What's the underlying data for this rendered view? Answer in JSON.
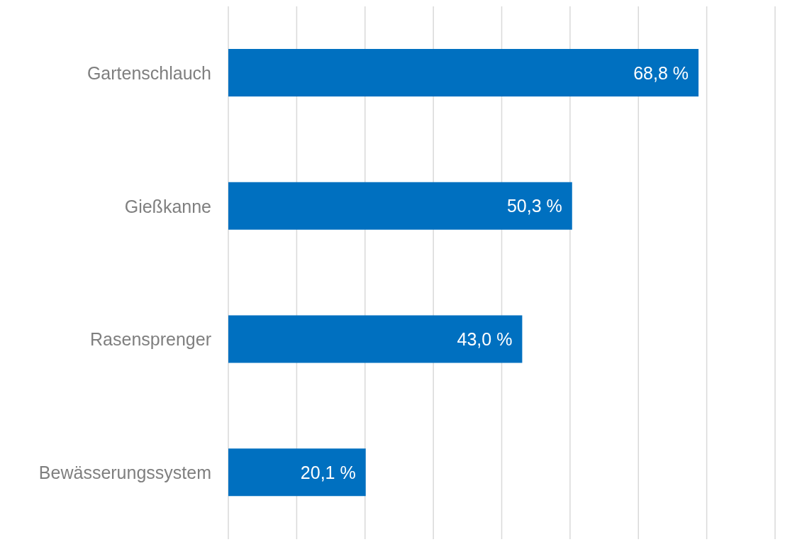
{
  "chart_data": {
    "type": "bar",
    "orientation": "horizontal",
    "categories": [
      "Gartenschlauch",
      "Gießkanne",
      "Rasensprenger",
      "Bewässerungssystem"
    ],
    "values": [
      68.8,
      50.3,
      43.0,
      20.1
    ],
    "value_labels": [
      "68,8 %",
      "50,3 %",
      "43,0 %",
      "20,1 %"
    ],
    "color": "#0070c0",
    "xlim": [
      0,
      80
    ],
    "xticks": [
      {
        "value": 0,
        "label": null
      },
      {
        "value": 10,
        "label": null
      },
      {
        "value": 20,
        "label": null
      },
      {
        "value": 30,
        "label": null
      },
      {
        "value": 40,
        "label": null
      },
      {
        "value": 50,
        "label": null
      },
      {
        "value": 60,
        "label": null
      },
      {
        "value": 70,
        "label": null
      },
      {
        "value": 80,
        "label": null
      }
    ],
    "tick_labels": "y",
    "grid": "x"
  }
}
